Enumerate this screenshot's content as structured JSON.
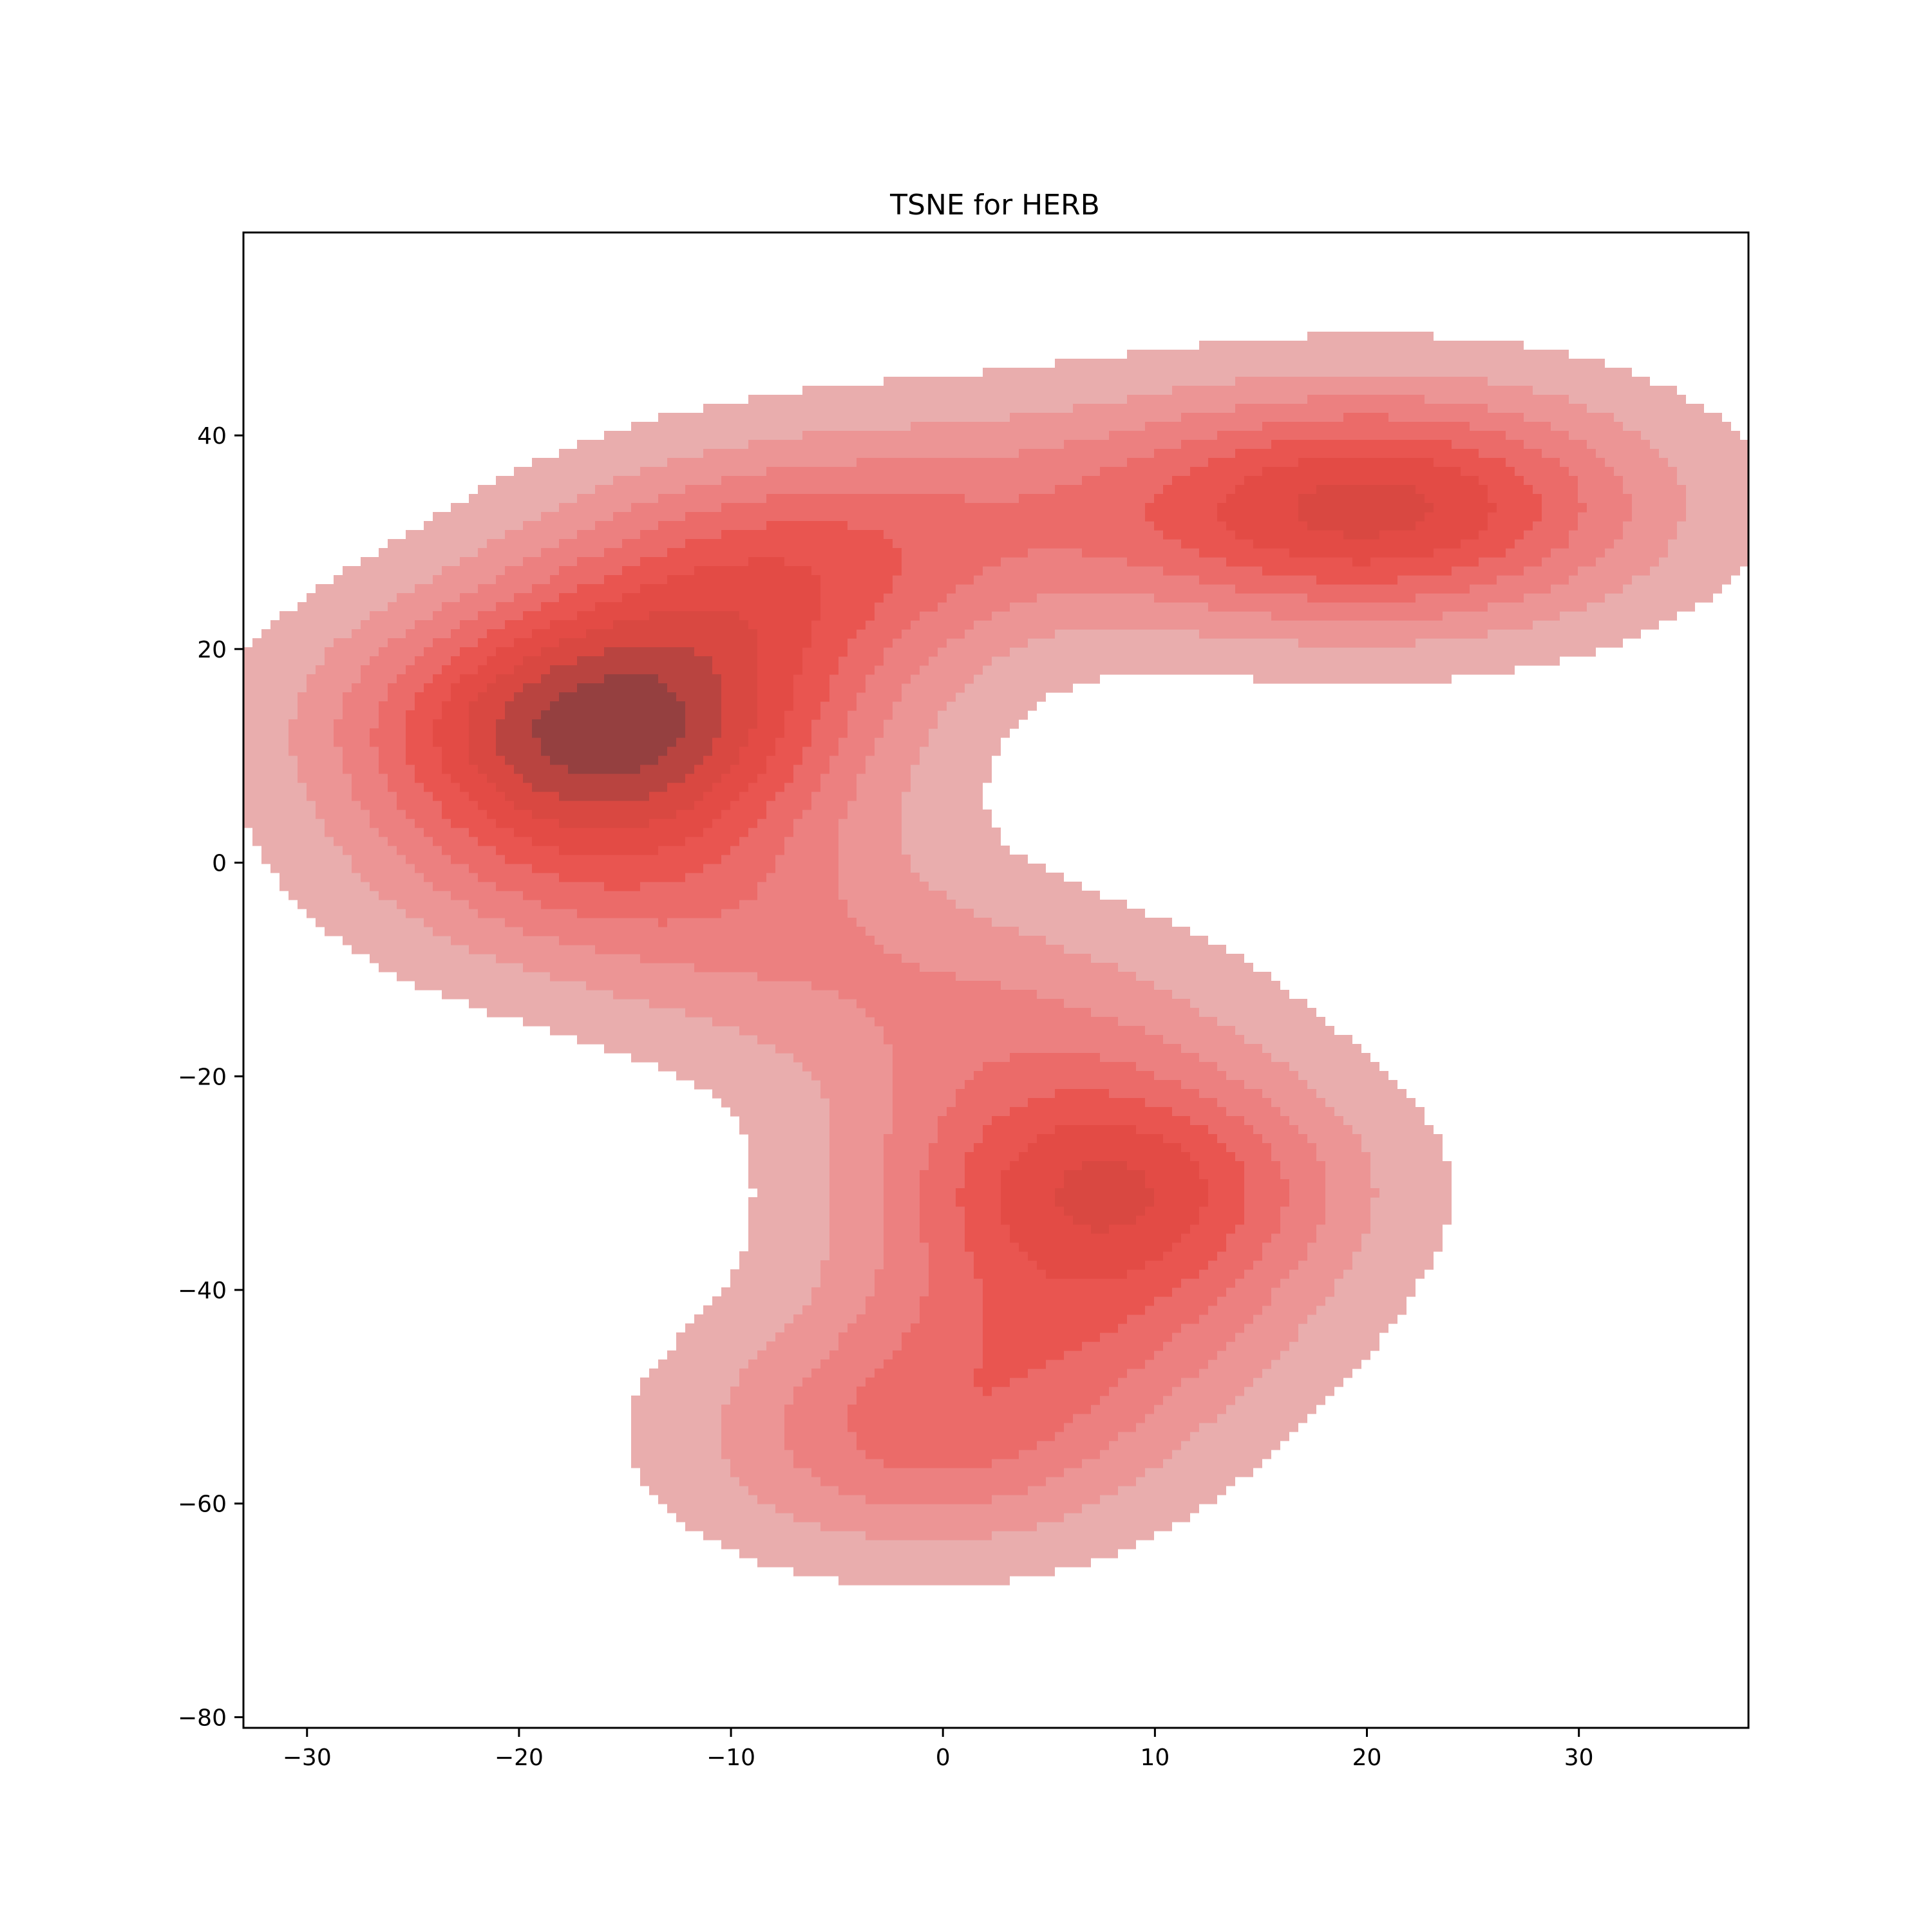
{
  "chart_data": {
    "type": "kde",
    "title": "TSNE for HERB",
    "xlabel": "",
    "ylabel": "",
    "xlim": [
      -33,
      38
    ],
    "ylim": [
      -81,
      59
    ],
    "x_ticks": [
      -30,
      -20,
      -10,
      0,
      10,
      20,
      30
    ],
    "y_ticks": [
      40,
      20,
      0,
      -20,
      -40,
      -60,
      -80
    ],
    "x_tick_labels": [
      "−30",
      "−20",
      "−10",
      "0",
      "10",
      "20",
      "30"
    ],
    "y_tick_labels": [
      "40",
      "20",
      "0",
      "−20",
      "−40",
      "−60",
      "−80"
    ],
    "grid": false,
    "legend": "none",
    "levels": 9,
    "bandwidth": 7.5,
    "level_colors": [
      "#e9adad",
      "#ec9595",
      "#ec8080",
      "#eb6b69",
      "#e95550",
      "#e34b45",
      "#d94841",
      "#b94440",
      "#954040"
    ],
    "density_modes": [
      {
        "x": -15,
        "y": 12,
        "weight": 1.0
      },
      {
        "x": -11,
        "y": 24,
        "weight": 0.55
      },
      {
        "x": -5,
        "y": 30,
        "weight": 0.45
      },
      {
        "x": -17,
        "y": 0,
        "weight": 0.5
      },
      {
        "x": 8,
        "y": -30,
        "weight": 1.0
      },
      {
        "x": 6,
        "y": -43,
        "weight": 0.5
      },
      {
        "x": -1,
        "y": -54,
        "weight": 0.6
      },
      {
        "x": 4,
        "y": -16,
        "weight": 0.35
      },
      {
        "x": 21,
        "y": 33,
        "weight": 0.75
      },
      {
        "x": 14,
        "y": 33,
        "weight": 0.35
      },
      {
        "x": 27,
        "y": 34,
        "weight": 0.25
      },
      {
        "x": 5,
        "y": 34,
        "weight": 0.2
      },
      {
        "x": -7,
        "y": -8,
        "weight": 0.3
      },
      {
        "x": -20,
        "y": 14,
        "weight": 0.4
      }
    ]
  }
}
